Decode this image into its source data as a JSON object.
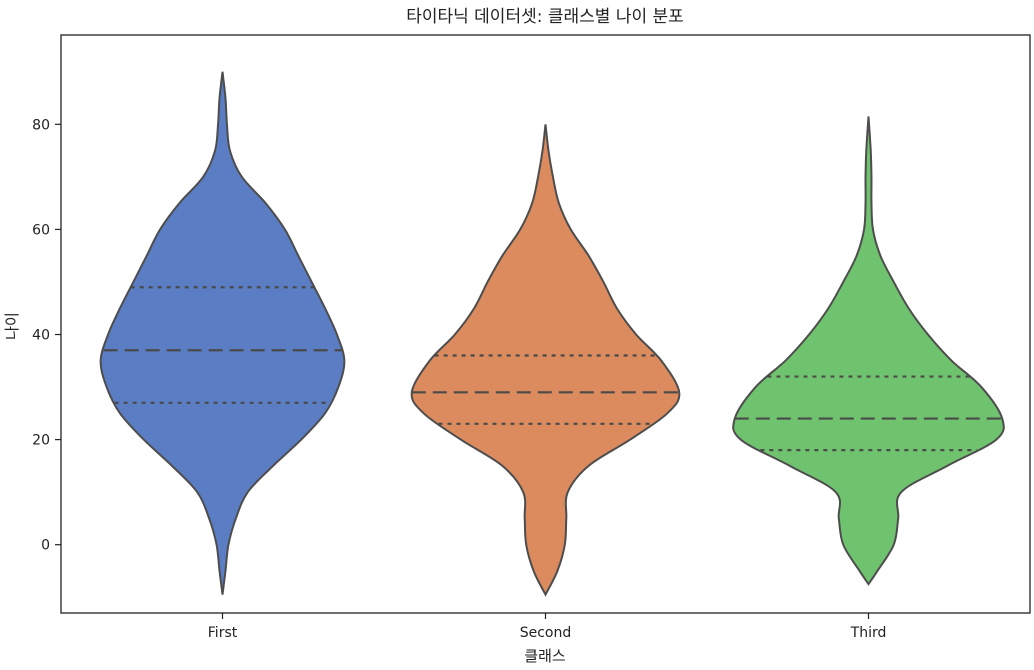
{
  "chart_data": {
    "type": "violin",
    "title": "타이타닉 데이터셋: 클래스별 나이 분포",
    "xlabel": "클래스",
    "ylabel": "나이",
    "categories": [
      "First",
      "Second",
      "Third"
    ],
    "ylim": [
      -13,
      97
    ],
    "yticks": [
      0,
      20,
      40,
      60,
      80
    ],
    "grid": false,
    "inner": "quartile",
    "violins": [
      {
        "category": "First",
        "color": "#5A7DC4",
        "min": -9.5,
        "max": 90,
        "q1": 27,
        "median": 37,
        "q3": 49,
        "profile": [
          [
            -9.5,
            0
          ],
          [
            -5,
            0.02
          ],
          [
            0,
            0.04
          ],
          [
            5,
            0.09
          ],
          [
            10,
            0.17
          ],
          [
            15,
            0.34
          ],
          [
            20,
            0.53
          ],
          [
            25,
            0.69
          ],
          [
            30,
            0.78
          ],
          [
            35,
            0.82
          ],
          [
            40,
            0.77
          ],
          [
            45,
            0.69
          ],
          [
            50,
            0.6
          ],
          [
            55,
            0.51
          ],
          [
            60,
            0.42
          ],
          [
            65,
            0.29
          ],
          [
            70,
            0.13
          ],
          [
            75,
            0.05
          ],
          [
            80,
            0.03
          ],
          [
            85,
            0.02
          ],
          [
            90,
            0
          ]
        ]
      },
      {
        "category": "Second",
        "color": "#DC8B5E",
        "min": -9.5,
        "max": 80,
        "q1": 23,
        "median": 29,
        "q3": 36,
        "profile": [
          [
            -9.5,
            0
          ],
          [
            -5,
            0.08
          ],
          [
            0,
            0.13
          ],
          [
            5,
            0.14
          ],
          [
            10,
            0.15
          ],
          [
            15,
            0.29
          ],
          [
            20,
            0.57
          ],
          [
            25,
            0.82
          ],
          [
            29,
            0.9
          ],
          [
            35,
            0.78
          ],
          [
            40,
            0.61
          ],
          [
            45,
            0.48
          ],
          [
            50,
            0.39
          ],
          [
            55,
            0.29
          ],
          [
            60,
            0.17
          ],
          [
            65,
            0.09
          ],
          [
            70,
            0.05
          ],
          [
            75,
            0.02
          ],
          [
            80,
            0
          ]
        ]
      },
      {
        "category": "Third",
        "color": "#70C36E",
        "min": -7.5,
        "max": 81.5,
        "q1": 18,
        "median": 24,
        "q3": 32,
        "profile": [
          [
            -7.5,
            0
          ],
          [
            -5,
            0.06
          ],
          [
            0,
            0.17
          ],
          [
            5,
            0.2
          ],
          [
            10,
            0.22
          ],
          [
            15,
            0.53
          ],
          [
            20,
            0.86
          ],
          [
            24,
            0.9
          ],
          [
            30,
            0.76
          ],
          [
            35,
            0.56
          ],
          [
            40,
            0.4
          ],
          [
            45,
            0.27
          ],
          [
            50,
            0.17
          ],
          [
            55,
            0.08
          ],
          [
            60,
            0.03
          ],
          [
            65,
            0.02
          ],
          [
            70,
            0.02
          ],
          [
            75,
            0.015
          ],
          [
            81.5,
            0
          ]
        ]
      }
    ]
  }
}
